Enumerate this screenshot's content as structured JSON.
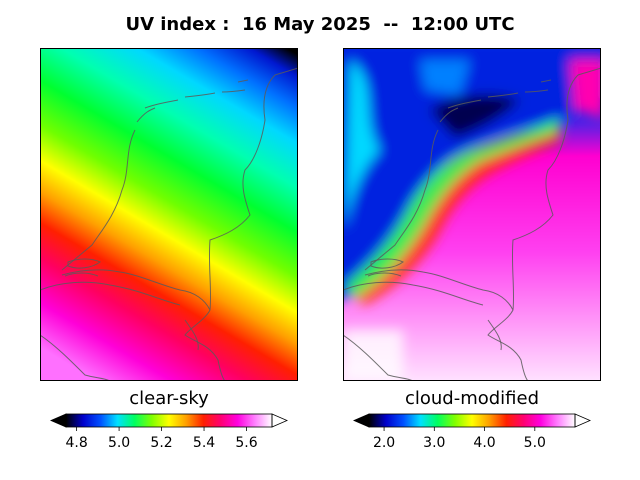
{
  "title": "UV index :  16 May 2025  --  12:00 UTC",
  "chart_data": [
    {
      "type": "heatmap",
      "subtitle": "clear-sky",
      "colorbar": {
        "min": 4.75,
        "max": 5.72,
        "ticks": [
          4.8,
          5.0,
          5.2,
          5.4,
          5.6
        ],
        "tick_labels": [
          "4.8",
          "5.0",
          "5.2",
          "5.4",
          "5.6"
        ],
        "extend": "both"
      },
      "gradient_direction": "northeast (low) to southwest (high)",
      "regions": [
        {
          "location": "north-east corner",
          "uv": 4.8
        },
        {
          "location": "north coast / islands",
          "uv": 5.0
        },
        {
          "location": "central Netherlands",
          "uv": 5.2
        },
        {
          "location": "south-west / delta",
          "uv": 5.5
        },
        {
          "location": "south-west corner (Belgium)",
          "uv": 5.65
        }
      ]
    },
    {
      "type": "heatmap",
      "subtitle": "cloud-modified",
      "colorbar": {
        "min": 1.7,
        "max": 5.8,
        "ticks": [
          2.0,
          3.0,
          4.0,
          5.0
        ],
        "tick_labels": [
          "2.0",
          "3.0",
          "4.0",
          "5.0"
        ],
        "extend": "both"
      },
      "regions": [
        {
          "location": "north (Wadden / north coast)",
          "uv": 2.4
        },
        {
          "location": "west coast band",
          "uv": 3.5
        },
        {
          "location": "south-east inland",
          "uv": 5.2
        },
        {
          "location": "south-west corner",
          "uv": 5.7
        }
      ]
    }
  ],
  "colors": {
    "colormap": [
      "#000000",
      "#0000cc",
      "#0050ff",
      "#00e0ff",
      "#00ff60",
      "#80ff00",
      "#ffff00",
      "#ffa000",
      "#ff2000",
      "#ff0070",
      "#ff00e0",
      "#ff80ff",
      "#ffffff"
    ],
    "coastline": "#5a5a5a",
    "frame": "#000000"
  }
}
